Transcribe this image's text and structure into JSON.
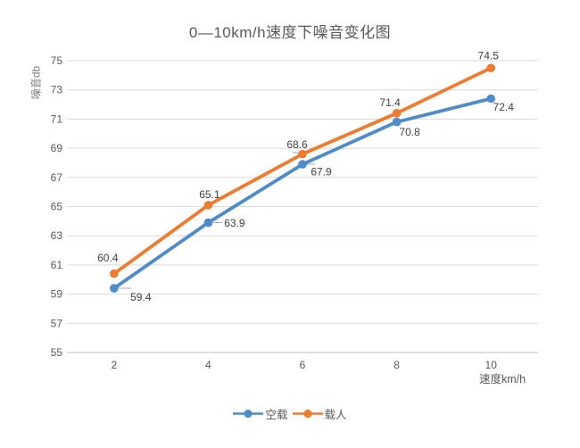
{
  "chart_data": {
    "type": "line",
    "title": "0—10km/h速度下噪音变化图",
    "xlabel": "速度km/h",
    "ylabel": "噪音db",
    "x": [
      2,
      4,
      6,
      8,
      10
    ],
    "series": [
      {
        "name": "空载",
        "color": "#4e8bc8",
        "values": [
          59.4,
          63.9,
          67.9,
          70.8,
          72.4
        ]
      },
      {
        "name": "载人",
        "color": "#ed7c31",
        "values": [
          60.4,
          65.1,
          68.6,
          71.4,
          74.5
        ]
      }
    ],
    "ylim": [
      55,
      75
    ],
    "yticks": [
      55,
      57,
      59,
      61,
      63,
      65,
      67,
      69,
      71,
      73,
      75
    ],
    "grid": true,
    "legend_position": "bottom",
    "colors": {
      "gridline": "#d9d9d9",
      "axis_line": "#bfbfbf",
      "tick_label": "#595959",
      "data_label": "#404040",
      "leader_line": "#a6a6a6",
      "title": "#595959",
      "axis_title": "#7f7f7f"
    }
  }
}
